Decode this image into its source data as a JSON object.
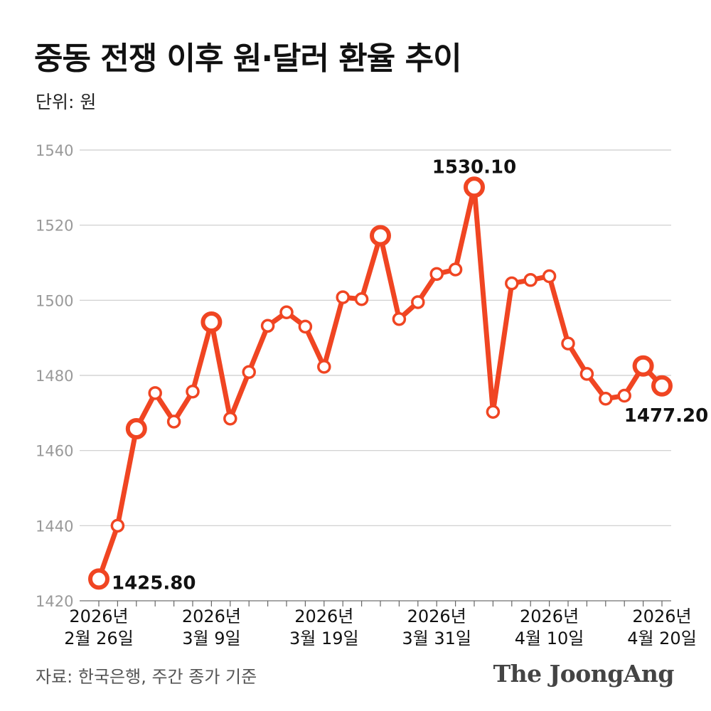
{
  "title": "중동 전쟁 이후 원·달러 환율 추이",
  "unit_label": "단위: 원",
  "source": "자료: 한국은행, 주간 종가 기준",
  "brand": "The JoongAng",
  "colors": {
    "line": "#f04522",
    "grid": "#cccccc",
    "axis_text": "#999999",
    "text": "#111111"
  },
  "chart_data": {
    "type": "line",
    "title": "중동 전쟁 이후 원·달러 환율 추이",
    "ylabel": "단위: 원",
    "ylim": [
      1420,
      1540
    ],
    "yticks": [
      1420,
      1440,
      1460,
      1480,
      1500,
      1520,
      1540
    ],
    "grid": true,
    "xticks": [
      {
        "index": 0,
        "label": [
          "2026년",
          "2월 26일"
        ]
      },
      {
        "index": 6,
        "label": [
          "2026년",
          "3월 9일"
        ]
      },
      {
        "index": 12,
        "label": [
          "2026년",
          "3월 19일"
        ]
      },
      {
        "index": 18,
        "label": [
          "2026년",
          "3월 31일"
        ]
      },
      {
        "index": 24,
        "label": [
          "2026년",
          "4월 10일"
        ]
      },
      {
        "index": 30,
        "label": [
          "2026년",
          "4월 20일"
        ]
      }
    ],
    "values": [
      1425.8,
      1440.0,
      1465.8,
      1475.3,
      1467.7,
      1475.7,
      1494.2,
      1468.5,
      1480.9,
      1493.2,
      1496.8,
      1493.0,
      1482.3,
      1500.8,
      1500.3,
      1517.2,
      1495.0,
      1499.5,
      1507.0,
      1508.2,
      1530.1,
      1470.3,
      1504.5,
      1505.4,
      1506.4,
      1488.5,
      1480.4,
      1473.8,
      1474.6,
      1482.5,
      1477.2
    ],
    "highlighted": [
      0,
      2,
      6,
      15,
      20,
      29,
      30
    ],
    "annotations": [
      {
        "index": 0,
        "text": "1425.80"
      },
      {
        "index": 20,
        "text": "1530.10"
      },
      {
        "index": 30,
        "text": "1477.20"
      }
    ]
  }
}
